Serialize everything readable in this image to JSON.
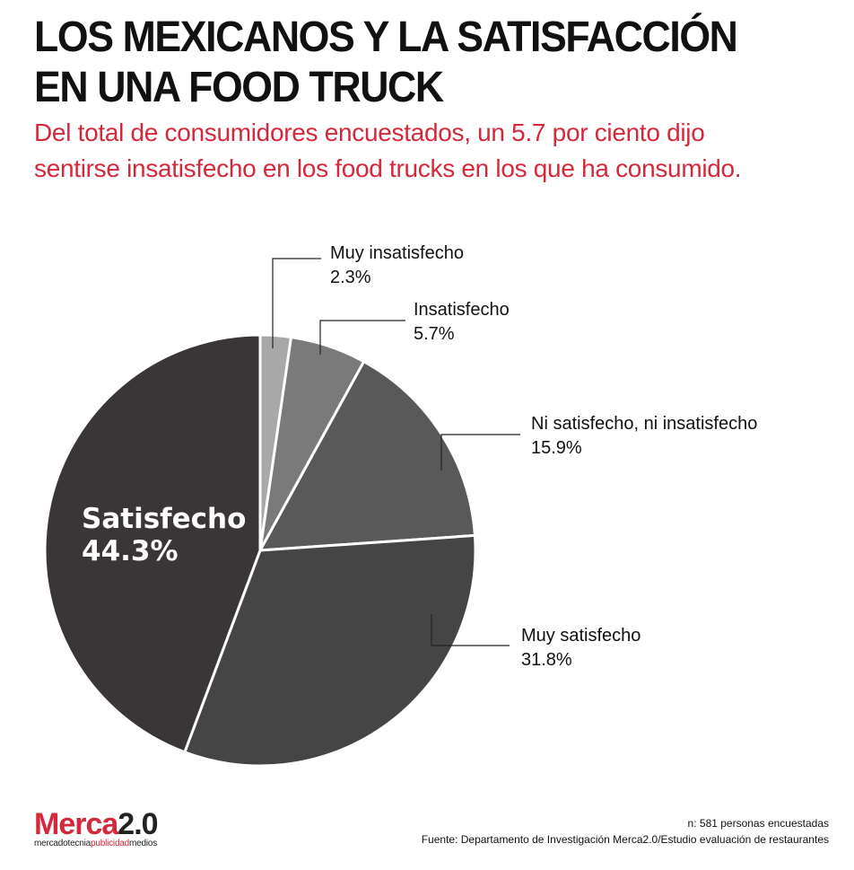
{
  "header": {
    "title_line1": "LOS MEXICANOS Y LA SATISFACCIÓN",
    "title_line2": "EN UNA FOOD TRUCK",
    "subtitle_line1": "Del total de consumidores encuestados, un 5.7 por ciento dijo",
    "subtitle_line2": "sentirse insatisfecho en los food trucks en los que ha consumido."
  },
  "chart_data": {
    "type": "pie",
    "title": "",
    "slices": [
      {
        "label": "Muy insatisfecho",
        "value": 2.3,
        "value_label": "2.3%",
        "color": "#a8a8a8"
      },
      {
        "label": "Insatisfecho",
        "value": 5.7,
        "value_label": "5.7%",
        "color": "#7a7a7a"
      },
      {
        "label": "Ni satisfecho, ni insatisfecho",
        "value": 15.9,
        "value_label": "15.9%",
        "color": "#595959"
      },
      {
        "label": "Muy satisfecho",
        "value": 31.8,
        "value_label": "31.8%",
        "color": "#454545"
      },
      {
        "label": "Satisfecho",
        "value": 44.3,
        "value_label": "44.3%",
        "color": "#3a3536"
      }
    ],
    "start_angle": "12 o'clock",
    "direction": "clockwise",
    "slice_border_color": "#ffffff"
  },
  "footer": {
    "logo_main_red": "Merca",
    "logo_main_dark": "2.0",
    "logo_tag_1": "mercadotecnia",
    "logo_tag_2": "publicidad",
    "logo_tag_3": "medios",
    "sample": "n: 581 personas encuestadas",
    "source": "Fuente: Departamento de Investigación Merca2.0/Estudio evaluación de restaurantes"
  }
}
